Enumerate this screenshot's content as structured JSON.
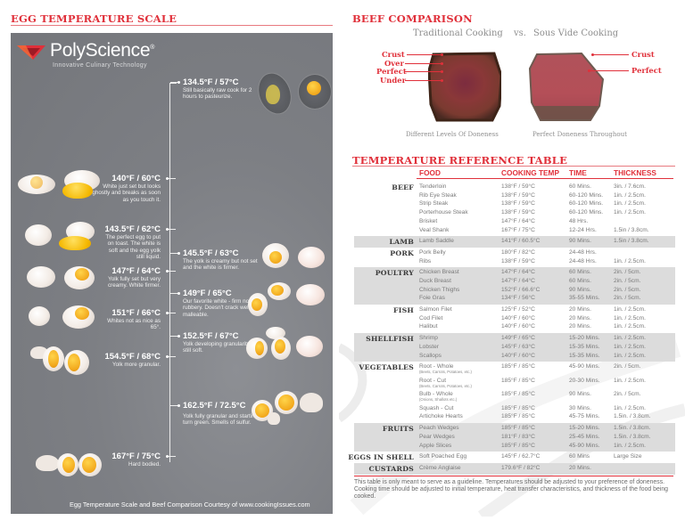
{
  "egg_section": {
    "title": "EGG TEMPERATURE SCALE",
    "logo": {
      "name": "PolyScience",
      "trademark": "®",
      "tagline": "Innovative Culinary Technology",
      "icon": "polyscience-chevron-logo-icon",
      "colors": [
        "#e0303a",
        "#b81e28"
      ]
    },
    "entries": [
      {
        "temp": "134.5°F / 57°C",
        "desc": "Still basically raw cook for 2 hours to pasteurize.",
        "side": "right"
      },
      {
        "temp": "140°F / 60°C",
        "desc": "White just set but looks ghostly and breaks as soon as you touch it.",
        "side": "left"
      },
      {
        "temp": "143.5°F / 62°C",
        "desc": "The perfect egg to put on toast. The white is soft and the egg yolk still liquid.",
        "side": "left"
      },
      {
        "temp": "145.5°F / 63°C",
        "desc": "The yolk is creamy but not set and the white is firmer.",
        "side": "right"
      },
      {
        "temp": "147°F / 64°C",
        "desc": "Yolk fully set but very creamy. White firmer.",
        "side": "left"
      },
      {
        "temp": "149°F / 65°C",
        "desc": "Our favorite white - firm not rubbery. Doesn't crack well. Yolk malleable.",
        "side": "right"
      },
      {
        "temp": "151°F / 66°C",
        "desc": "Whites not as nice as 65°.",
        "side": "left"
      },
      {
        "temp": "152.5°F / 67°C",
        "desc": "Yolk developing granularity but still soft.",
        "side": "right"
      },
      {
        "temp": "154.5°F / 68°C",
        "desc": "Yolk more granular.",
        "side": "left"
      },
      {
        "temp": "162.5°F / 72.5°C",
        "desc": "Yolk fully granular and starting to turn green. Smells of sulfur.",
        "side": "right"
      },
      {
        "temp": "167°F / 75°C",
        "desc": "Hard bodied.",
        "side": "left"
      }
    ],
    "credit": "Egg Temperature Scale and Beef Comparison Courtesy of www.cookingIssues.com",
    "panel_color": "#7e8085"
  },
  "beef_section": {
    "title": "BEEF COMPARISON",
    "subtitle_left": "Traditional Cooking",
    "subtitle_vs": "vs.",
    "subtitle_right": "Sous Vide Cooking",
    "left_labels": [
      "Crust",
      "Over",
      "Perfect",
      "Under"
    ],
    "right_labels": [
      "Crust",
      "Perfect"
    ],
    "caption_left": "Different Levels Of Doneness",
    "caption_right": "Perfect Doneness Throughout"
  },
  "table_section": {
    "title": "TEMPERATURE REFERENCE TABLE",
    "headers": {
      "food": "FOOD",
      "temp": "COOKING TEMP",
      "time": "TIME",
      "thickness": "THICKNESS"
    },
    "groups": [
      {
        "category": "BEEF",
        "shaded": false,
        "rows": [
          {
            "food": "Tenderloin",
            "temp": "138°F / 59°C",
            "time": "60 Mins.",
            "thickness": "3in. / 7.6cm."
          },
          {
            "food": "Rib Eye Steak",
            "temp": "138°F / 59°C",
            "time": "60-120 Mins.",
            "thickness": "1in. / 2.5cm."
          },
          {
            "food": "Strip Steak",
            "temp": "138°F / 59°C",
            "time": "60-120 Mins.",
            "thickness": "1in. / 2.5cm."
          },
          {
            "food": "Porterhouse Steak",
            "temp": "138°F / 59°C",
            "time": "60-120 Mins.",
            "thickness": "1in. / 2.5cm."
          },
          {
            "food": "Brisket",
            "temp": "147°F / 64°C",
            "time": "48 Hrs.",
            "thickness": ""
          },
          {
            "food": "Veal Shank",
            "temp": "167°F / 75°C",
            "time": "12-24 Hrs.",
            "thickness": "1.5in / 3.8cm."
          }
        ]
      },
      {
        "category": "LAMB",
        "shaded": true,
        "rows": [
          {
            "food": "Lamb Saddle",
            "temp": "141°F / 60.5°C",
            "time": "90 Mins.",
            "thickness": "1.5in / 3.8cm."
          }
        ]
      },
      {
        "category": "PORK",
        "shaded": false,
        "rows": [
          {
            "food": "Pork Belly",
            "temp": "180°F / 82°C",
            "time": "24-48 Hrs.",
            "thickness": ""
          },
          {
            "food": "Ribs",
            "temp": "138°F / 59°C",
            "time": "24-48 Hrs.",
            "thickness": "1in. / 2.5cm."
          }
        ]
      },
      {
        "category": "POULTRY",
        "shaded": true,
        "rows": [
          {
            "food": "Chicken Breast",
            "temp": "147°F / 64°C",
            "time": "60 Mins.",
            "thickness": "2in. / 5cm."
          },
          {
            "food": "Duck Breast",
            "temp": "147°F / 64°C",
            "time": "60 Mins.",
            "thickness": "2in. / 5cm."
          },
          {
            "food": "Chicken Thighs",
            "temp": "152°F / 66.6°C",
            "time": "90 Mins.",
            "thickness": "2in. / 5cm."
          },
          {
            "food": "Foie Gras",
            "temp": "134°F / 56°C",
            "time": "35-55 Mins.",
            "thickness": "2in. / 5cm."
          }
        ]
      },
      {
        "category": "FISH",
        "shaded": false,
        "rows": [
          {
            "food": "Salmon Filet",
            "temp": "125°F / 52°C",
            "time": "20 Mins.",
            "thickness": "1in. / 2.5cm."
          },
          {
            "food": "Cod Filet",
            "temp": "140°F / 60°C",
            "time": "20 Mins.",
            "thickness": "1in. / 2.5cm."
          },
          {
            "food": "Halibut",
            "temp": "140°F / 60°C",
            "time": "20 Mins.",
            "thickness": "1in. / 2.5cm."
          }
        ]
      },
      {
        "category": "SHELLFISH",
        "shaded": true,
        "rows": [
          {
            "food": "Shrimp",
            "temp": "149°F / 65°C",
            "time": "15-20 Mins.",
            "thickness": "1in. / 2.5cm."
          },
          {
            "food": "Lobster",
            "temp": "145°F / 63°C",
            "time": "15-35 Mins.",
            "thickness": "1in. / 2.5cm."
          },
          {
            "food": "Scallops",
            "temp": "140°F / 60°C",
            "time": "15-35 Mins.",
            "thickness": "1in. / 2.5cm."
          }
        ]
      },
      {
        "category": "VEGETABLES",
        "shaded": false,
        "rows": [
          {
            "food": "Root - Whole",
            "note": "(Beets, Carrots, Potatoes, etc.)",
            "temp": "185°F / 85°C",
            "time": "45-90 Mins.",
            "thickness": "2in. / 5cm."
          },
          {
            "food": "Root - Cut",
            "note": "(Beets, Carrots, Potatoes, etc.)",
            "temp": "185°F / 85°C",
            "time": "20-30 Mins.",
            "thickness": "1in. / 2.5cm."
          },
          {
            "food": "Bulb - Whole",
            "note": "(Onions, Shallots etc.)",
            "temp": "185°F / 85°C",
            "time": "90 Mins.",
            "thickness": "2in. / 5cm."
          },
          {
            "food": "Squash - Cut",
            "temp": "185°F / 85°C",
            "time": "30 Mins.",
            "thickness": "1in. / 2.5cm."
          },
          {
            "food": "Artichoke Hearts",
            "temp": "185°F / 85°C",
            "time": "45-75 Mins.",
            "thickness": "1.5in. / 3.8cm."
          }
        ]
      },
      {
        "category": "FRUITS",
        "shaded": true,
        "rows": [
          {
            "food": "Peach Wedges",
            "temp": "185°F / 85°C",
            "time": "15-20 Mins.",
            "thickness": "1.5in. / 3.8cm."
          },
          {
            "food": "Pear Wedges",
            "temp": "181°F / 83°C",
            "time": "25-45 Mins.",
            "thickness": "1.5in. / 3.8cm."
          },
          {
            "food": "Apple Slices",
            "temp": "185°F / 85°C",
            "time": "45-90 Mins.",
            "thickness": "1in. / 2.5cm."
          }
        ]
      },
      {
        "category": "EGGS IN SHELL",
        "shaded": false,
        "rows": [
          {
            "food": "Soft Poached Egg",
            "temp": "145°F / 62.7°C",
            "time": "60 Mins",
            "thickness": "Large Size"
          }
        ]
      },
      {
        "category": "CUSTARDS",
        "shaded": true,
        "rows": [
          {
            "food": "Crème Anglaise",
            "temp": "179.6°F / 82°C",
            "time": "20 Mins.",
            "thickness": ""
          }
        ]
      }
    ],
    "disclaimer": "This table is only meant to serve as a guideline. Temperatures should be adjusted to your preference of doneness. Cooking time should be adjusted to initial temperature, heat transfer characteristics, and thickness of the food being cooked.",
    "accent_color": "#e0303a"
  }
}
